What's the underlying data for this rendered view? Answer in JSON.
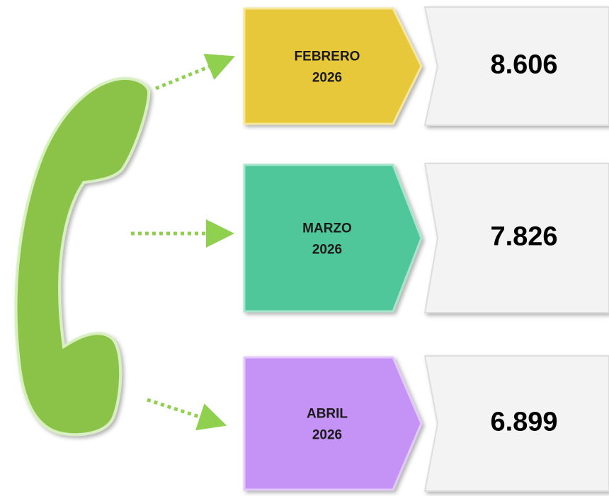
{
  "items": [
    {
      "month": "FEBRERO",
      "year": "2026",
      "value": "8.606"
    },
    {
      "month": "MARZO",
      "year": "2026",
      "value": "7.826"
    },
    {
      "month": "ABRIL",
      "year": "2026",
      "value": "6.899"
    }
  ]
}
